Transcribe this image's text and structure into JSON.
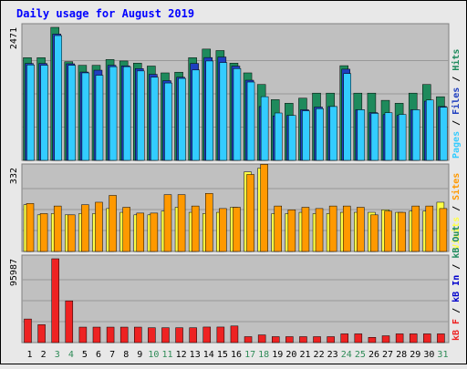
{
  "title": "Daily usage for August 2019",
  "colors": {
    "background": "#e8e8e8",
    "panel": "#c0c0c0",
    "frame": "#808080",
    "title": "#0000ff",
    "hits": "#1e8a5c",
    "files": "#1f3fbf",
    "pages": "#33ccff",
    "visits": "#ffff44",
    "sites": "#ff9900",
    "kb": "#ee2222",
    "kbin": "#0000cc",
    "kbout": "#1e8a5c",
    "weekday_label": "#000000",
    "weekend_label": "#2e8b57"
  },
  "chart_data": [
    {
      "type": "bar",
      "panel": "pages-files-hits",
      "ymax_label": "2471",
      "ylim": [
        0,
        2471
      ],
      "legend": [
        {
          "name": "Pages",
          "color": "#33ccff"
        },
        {
          "name": "Files",
          "color": "#1f3fbf"
        },
        {
          "name": "Hits",
          "color": "#1e8a5c"
        }
      ],
      "categories": [
        "1",
        "2",
        "3",
        "4",
        "5",
        "6",
        "7",
        "8",
        "9",
        "10",
        "11",
        "12",
        "13",
        "14",
        "15",
        "16",
        "17",
        "18",
        "19",
        "20",
        "21",
        "22",
        "23",
        "24",
        "25",
        "26",
        "27",
        "28",
        "29",
        "30",
        "31"
      ],
      "weekend": [
        3,
        4,
        10,
        11,
        17,
        18,
        24,
        25,
        31
      ],
      "series": [
        {
          "name": "Hits",
          "values": [
            1907,
            1907,
            2471,
            1833,
            1766,
            1766,
            1873,
            1846,
            1806,
            1752,
            1625,
            1638,
            1907,
            2067,
            2040,
            1806,
            1625,
            1410,
            1128,
            1061,
            1155,
            1249,
            1249,
            1759,
            1249,
            1249,
            1115,
            1061,
            1249,
            1410,
            1182
          ]
        },
        {
          "name": "Files",
          "values": [
            1800,
            1800,
            2346,
            1794,
            1641,
            1675,
            1766,
            1756,
            1705,
            1598,
            1480,
            1544,
            1800,
            1910,
            1920,
            1751,
            1489,
            1000,
            826,
            834,
            940,
            990,
            1000,
            1694,
            940,
            887,
            850,
            834,
            940,
            1100,
            1000
          ]
        },
        {
          "name": "Pages",
          "values": [
            1773,
            1767,
            2318,
            1766,
            1625,
            1581,
            1740,
            1740,
            1661,
            1544,
            1437,
            1522,
            1679,
            1846,
            1817,
            1705,
            1455,
            1183,
            880,
            834,
            920,
            960,
            1000,
            1612,
            940,
            873,
            886,
            853,
            940,
            1121,
            986
          ]
        }
      ]
    },
    {
      "type": "bar",
      "panel": "visits-sites",
      "ymax_label": "332",
      "ylim": [
        0,
        332
      ],
      "legend": [
        {
          "name": "Visits",
          "color": "#ffff44"
        },
        {
          "name": "Sites",
          "color": "#ff9900"
        }
      ],
      "categories": [
        "1",
        "2",
        "3",
        "4",
        "5",
        "6",
        "7",
        "8",
        "9",
        "10",
        "11",
        "12",
        "13",
        "14",
        "15",
        "16",
        "17",
        "18",
        "19",
        "20",
        "21",
        "22",
        "23",
        "24",
        "25",
        "26",
        "27",
        "28",
        "29",
        "30",
        "31"
      ],
      "series": [
        {
          "name": "Visits",
          "values": [
            185,
            145,
            150,
            145,
            150,
            150,
            170,
            155,
            145,
            145,
            160,
            175,
            155,
            150,
            155,
            175,
            315,
            330,
            150,
            150,
            155,
            150,
            150,
            155,
            155,
            155,
            165,
            155,
            160,
            160,
            195
          ]
        },
        {
          "name": "Sites",
          "values": [
            190,
            150,
            180,
            145,
            185,
            195,
            222,
            175,
            152,
            152,
            225,
            225,
            180,
            230,
            170,
            175,
            305,
            345,
            180,
            165,
            175,
            170,
            180,
            180,
            175,
            145,
            160,
            155,
            180,
            180,
            170
          ]
        }
      ]
    },
    {
      "type": "bar",
      "panel": "kbytes",
      "ymax_label": "95987",
      "ylim": [
        0,
        95987
      ],
      "legend": [
        {
          "name": "kB F",
          "color": "#ee2222"
        },
        {
          "name": "kB In",
          "color": "#0000cc"
        },
        {
          "name": "kB Out",
          "color": "#1e8a5c"
        }
      ],
      "categories": [
        "1",
        "2",
        "3",
        "4",
        "5",
        "6",
        "7",
        "8",
        "9",
        "10",
        "11",
        "12",
        "13",
        "14",
        "15",
        "16",
        "17",
        "18",
        "19",
        "20",
        "21",
        "22",
        "23",
        "24",
        "25",
        "26",
        "27",
        "28",
        "29",
        "30",
        "31"
      ],
      "series": [
        {
          "name": "kB F",
          "values": [
            27000,
            20500,
            95987,
            47800,
            17700,
            17700,
            17700,
            17700,
            17700,
            17000,
            17000,
            17000,
            17000,
            17800,
            17800,
            19000,
            6800,
            8800,
            6800,
            6800,
            6800,
            6800,
            6800,
            10000,
            10000,
            6000,
            7800,
            10000,
            10000,
            10000,
            10000
          ]
        }
      ]
    }
  ]
}
